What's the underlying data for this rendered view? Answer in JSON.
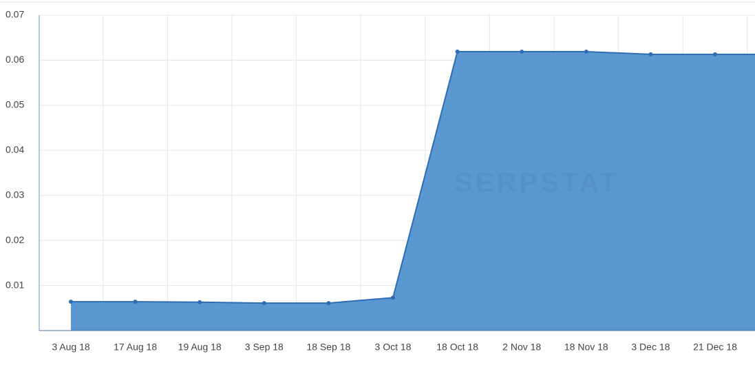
{
  "chart_data": {
    "type": "area",
    "watermark": "SERPSTAT",
    "categories": [
      "3 Aug 18",
      "17 Aug 18",
      "19 Aug 18",
      "3 Sep 18",
      "18 Sep 18",
      "3 Oct 18",
      "18 Oct 18",
      "2 Nov 18",
      "18 Nov 18",
      "3 Dec 18",
      "21 Dec 18",
      null
    ],
    "values": [
      0.0064,
      0.0064,
      0.0063,
      0.0061,
      0.0061,
      0.0073,
      0.0619,
      0.0619,
      0.0619,
      0.0613,
      0.0613,
      0.0613
    ],
    "color": "#5b97d1",
    "line_color": "#2e6db4",
    "ylim": [
      0,
      0.07
    ],
    "yticks": [
      0.01,
      0.02,
      0.03,
      0.04,
      0.05,
      0.06,
      0.07
    ],
    "grid": true
  }
}
